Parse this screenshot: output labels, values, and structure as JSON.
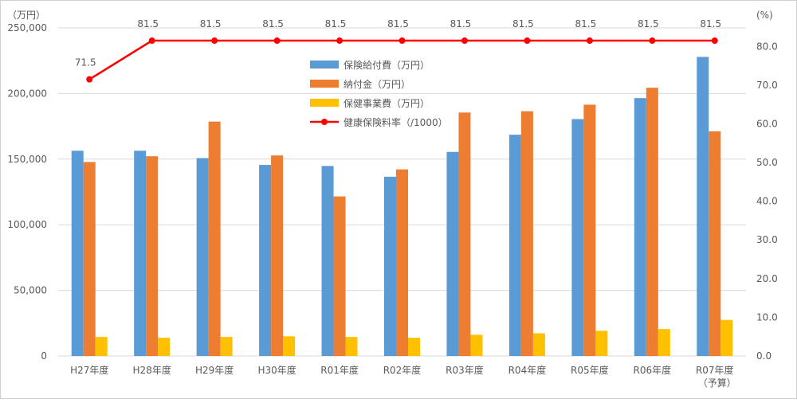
{
  "chart_data": {
    "type": "bar",
    "categories": [
      "H27年度",
      "H28年度",
      "H29年度",
      "H30年度",
      "R01年度",
      "R02年度",
      "R03年度",
      "R04年度",
      "R05年度",
      "R06年度",
      "R07年度"
    ],
    "category_sublabels": [
      "",
      "",
      "",
      "",
      "",
      "",
      "",
      "",
      "",
      "",
      "（予算）"
    ],
    "left_axis": {
      "label": "（万円）",
      "ylim": [
        0,
        250000
      ],
      "ticks": [
        "0",
        "50,000",
        "100,000",
        "150,000",
        "200,000",
        "250,000"
      ]
    },
    "right_axis": {
      "label": "(%)",
      "ylim": [
        0,
        84.8
      ],
      "ticks": [
        "0.0",
        "10.0",
        "20.0",
        "30.0",
        "40.0",
        "50.0",
        "60.0",
        "70.0",
        "80.0"
      ]
    },
    "series": [
      {
        "name": "保険給付費（万円）",
        "type": "bar",
        "axis": "left",
        "color": "#5B9BD5",
        "values": [
          156400,
          156400,
          150800,
          145600,
          144800,
          136600,
          155500,
          168600,
          180500,
          196500,
          227900
        ]
      },
      {
        "name": "納付金（万円）",
        "type": "bar",
        "axis": "left",
        "color": "#ED7D31",
        "values": [
          147800,
          152200,
          178600,
          152800,
          121600,
          142200,
          185500,
          186500,
          191500,
          204400,
          171200
        ]
      },
      {
        "name": "保健事業費（万円）",
        "type": "bar",
        "axis": "left",
        "color": "#FFC000",
        "values": [
          14500,
          13900,
          14500,
          15000,
          14500,
          13900,
          16200,
          17300,
          19200,
          20500,
          27500
        ]
      },
      {
        "name": "健康保険料率（/1000）",
        "type": "line",
        "axis": "right",
        "color": "#FF0000",
        "values": [
          71.5,
          81.5,
          81.5,
          81.5,
          81.5,
          81.5,
          81.5,
          81.5,
          81.5,
          81.5,
          81.5
        ],
        "data_labels": [
          "71.5",
          "81.5",
          "81.5",
          "81.5",
          "81.5",
          "81.5",
          "81.5",
          "81.5",
          "81.5",
          "81.5",
          "81.5"
        ]
      }
    ],
    "grid": true,
    "legend_position": "top-center-inside"
  }
}
